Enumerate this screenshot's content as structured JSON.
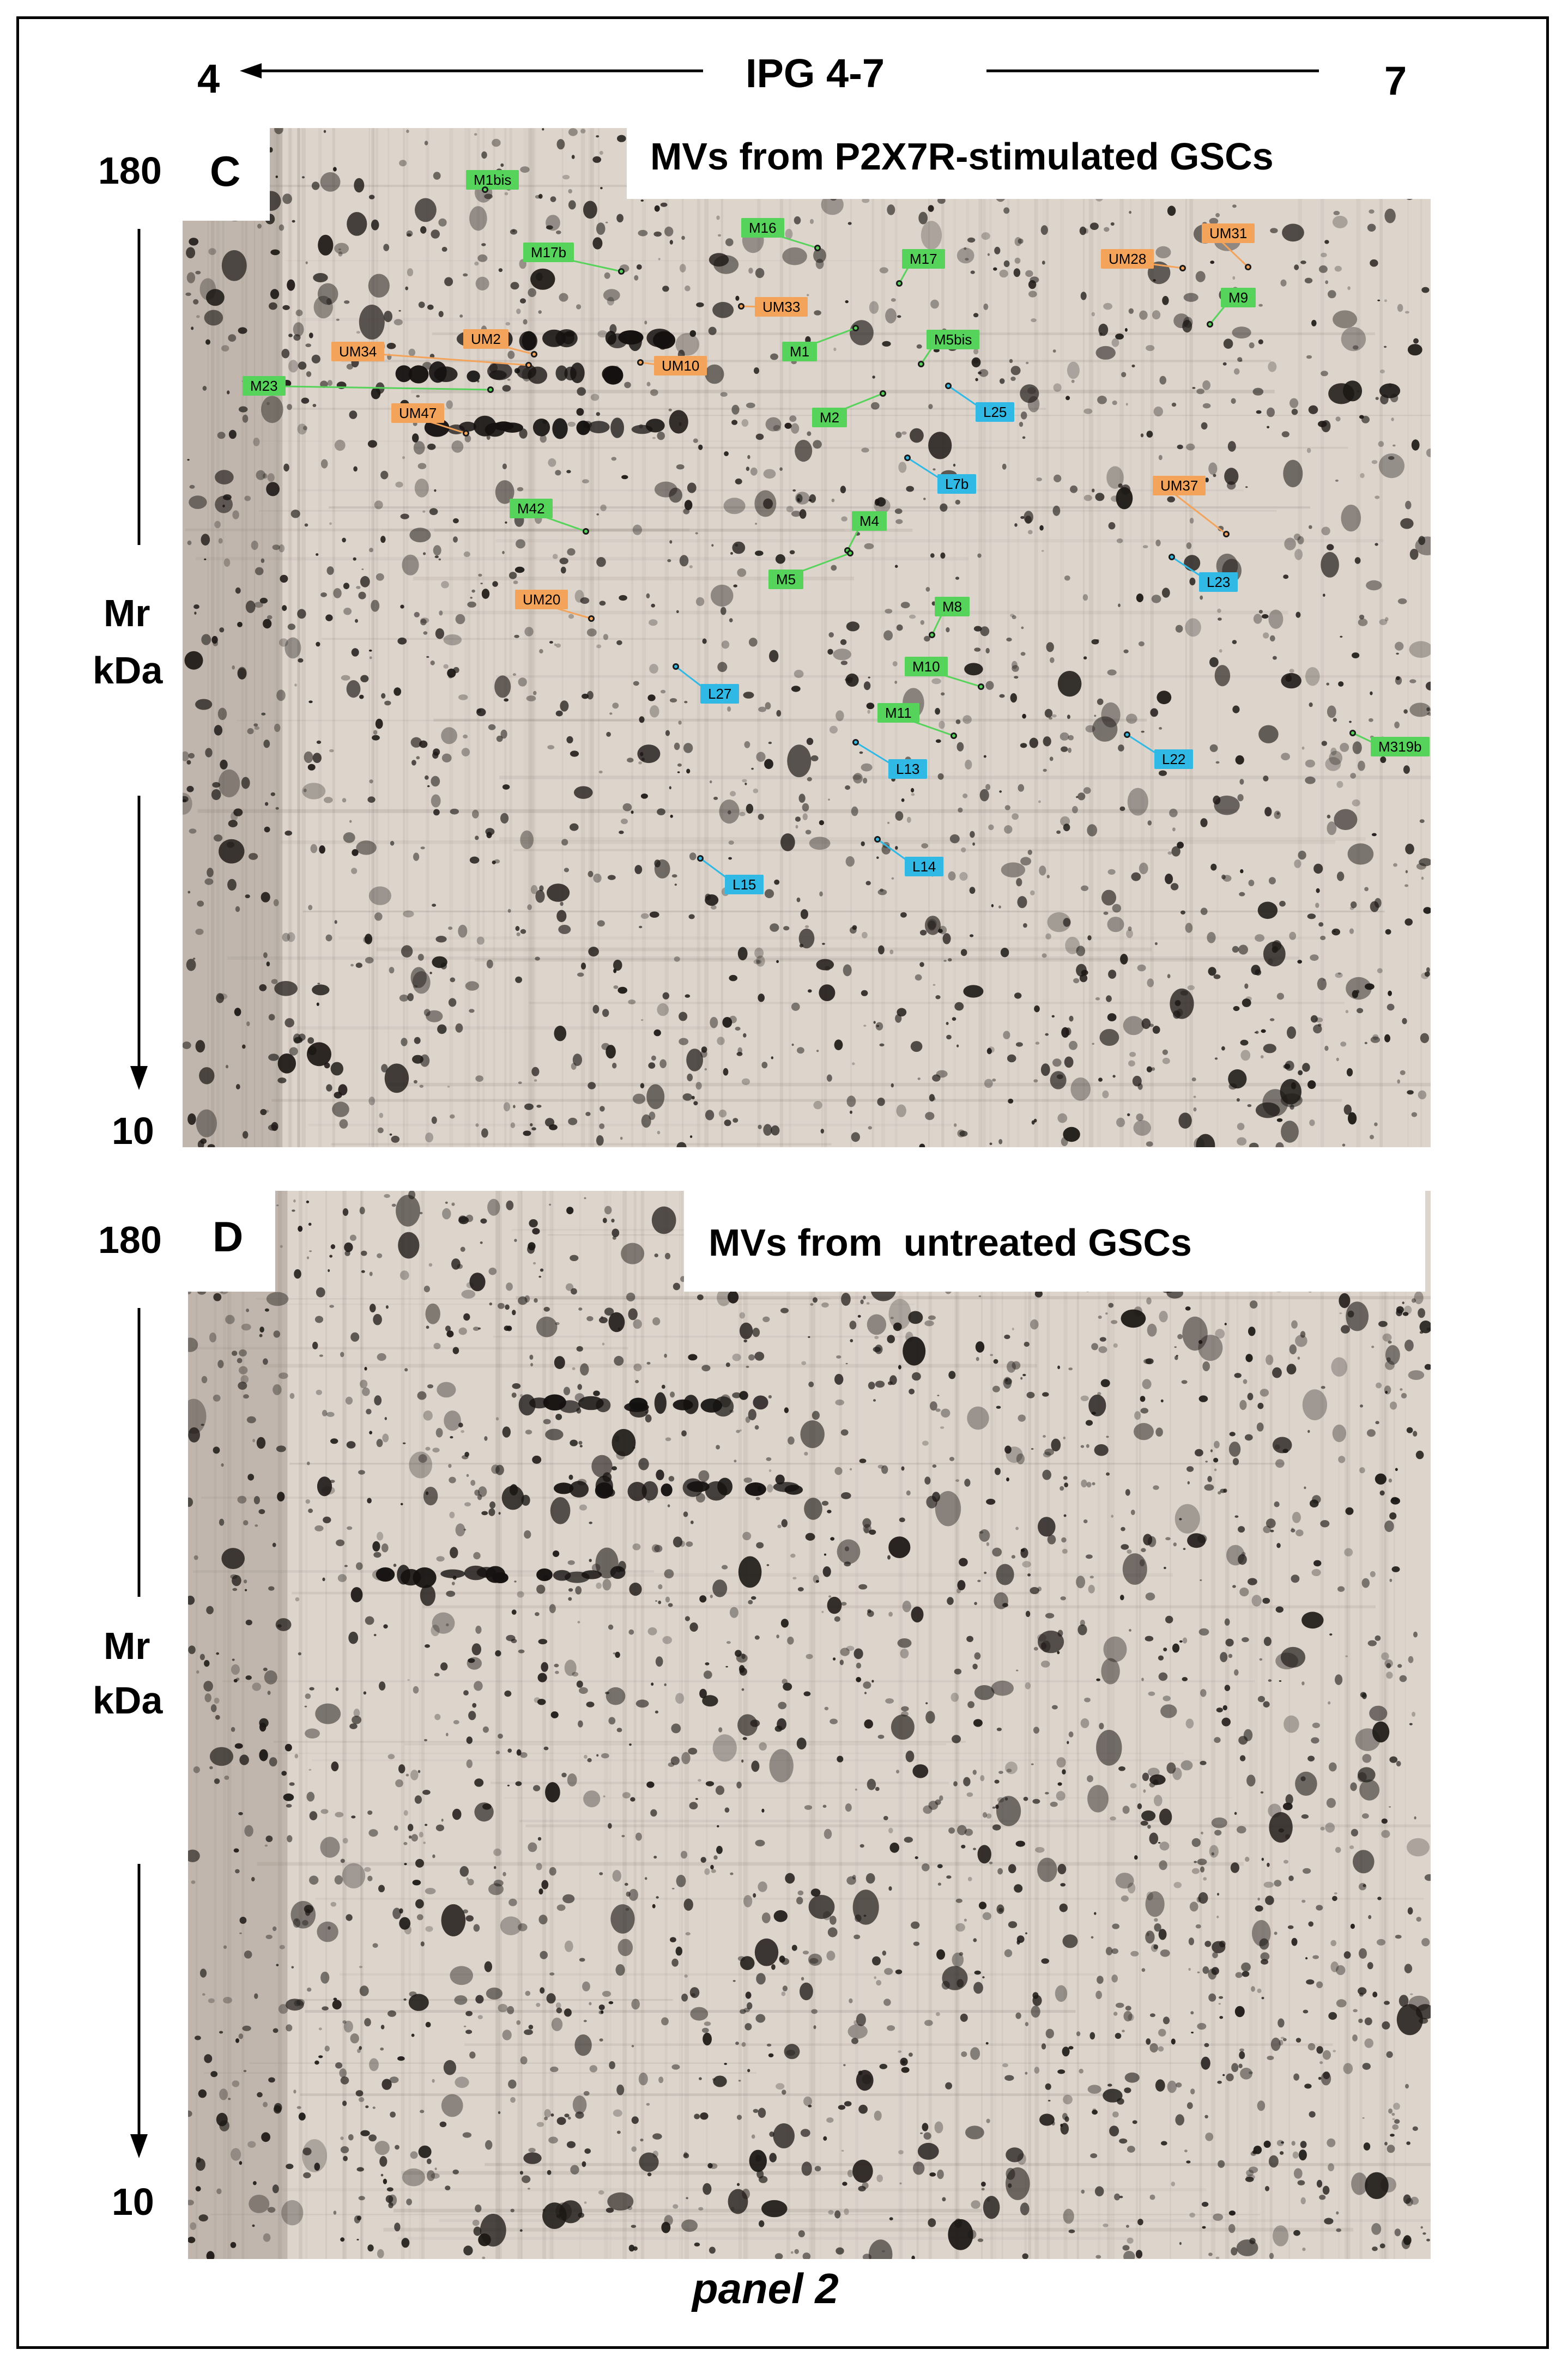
{
  "header": {
    "ph_low": "4",
    "ph_high": "7",
    "gradient": "IPG 4-7"
  },
  "panels": [
    {
      "letter": "C",
      "title": "MVs from P2X7R-stimulated GSCs",
      "mw_top": "180",
      "mw_bottom": "10",
      "axis_line1": "Mr",
      "axis_line2": "kDa"
    },
    {
      "letter": "D",
      "title": "MVs from  untreated GSCs",
      "mw_top": "180",
      "mw_bottom": "10",
      "axis_line1": "Mr",
      "axis_line2": "kDa"
    }
  ],
  "footer": {
    "caption": "panel 2"
  },
  "colors": {
    "green": "#56d35a",
    "orange": "#f4a35a",
    "blue": "#31b9e6",
    "gel_bg": "#ddd4cc"
  },
  "spot_labels": [
    {
      "text": "M1bis",
      "color": "green"
    },
    {
      "text": "M16",
      "color": "green"
    },
    {
      "text": "M17b",
      "color": "green"
    },
    {
      "text": "M17",
      "color": "green"
    },
    {
      "text": "UM28",
      "color": "orange"
    },
    {
      "text": "UM31",
      "color": "orange"
    },
    {
      "text": "M9",
      "color": "green"
    },
    {
      "text": "UM33",
      "color": "orange"
    },
    {
      "text": "UM34",
      "color": "orange"
    },
    {
      "text": "UM2",
      "color": "orange"
    },
    {
      "text": "M1",
      "color": "green"
    },
    {
      "text": "M5bis",
      "color": "green"
    },
    {
      "text": "UM10",
      "color": "orange"
    },
    {
      "text": "M23",
      "color": "green"
    },
    {
      "text": "UM47",
      "color": "orange"
    },
    {
      "text": "M2",
      "color": "green"
    },
    {
      "text": "L25",
      "color": "blue"
    },
    {
      "text": "L7b",
      "color": "blue"
    },
    {
      "text": "UM37",
      "color": "orange"
    },
    {
      "text": "M42",
      "color": "green"
    },
    {
      "text": "M4",
      "color": "green"
    },
    {
      "text": "M5",
      "color": "green"
    },
    {
      "text": "L23",
      "color": "blue"
    },
    {
      "text": "UM20",
      "color": "orange"
    },
    {
      "text": "M8",
      "color": "green"
    },
    {
      "text": "M10",
      "color": "green"
    },
    {
      "text": "L27",
      "color": "blue"
    },
    {
      "text": "M11",
      "color": "green"
    },
    {
      "text": "L13",
      "color": "blue"
    },
    {
      "text": "L22",
      "color": "blue"
    },
    {
      "text": "M319b",
      "color": "green"
    },
    {
      "text": "L14",
      "color": "blue"
    },
    {
      "text": "L15",
      "color": "blue"
    }
  ]
}
